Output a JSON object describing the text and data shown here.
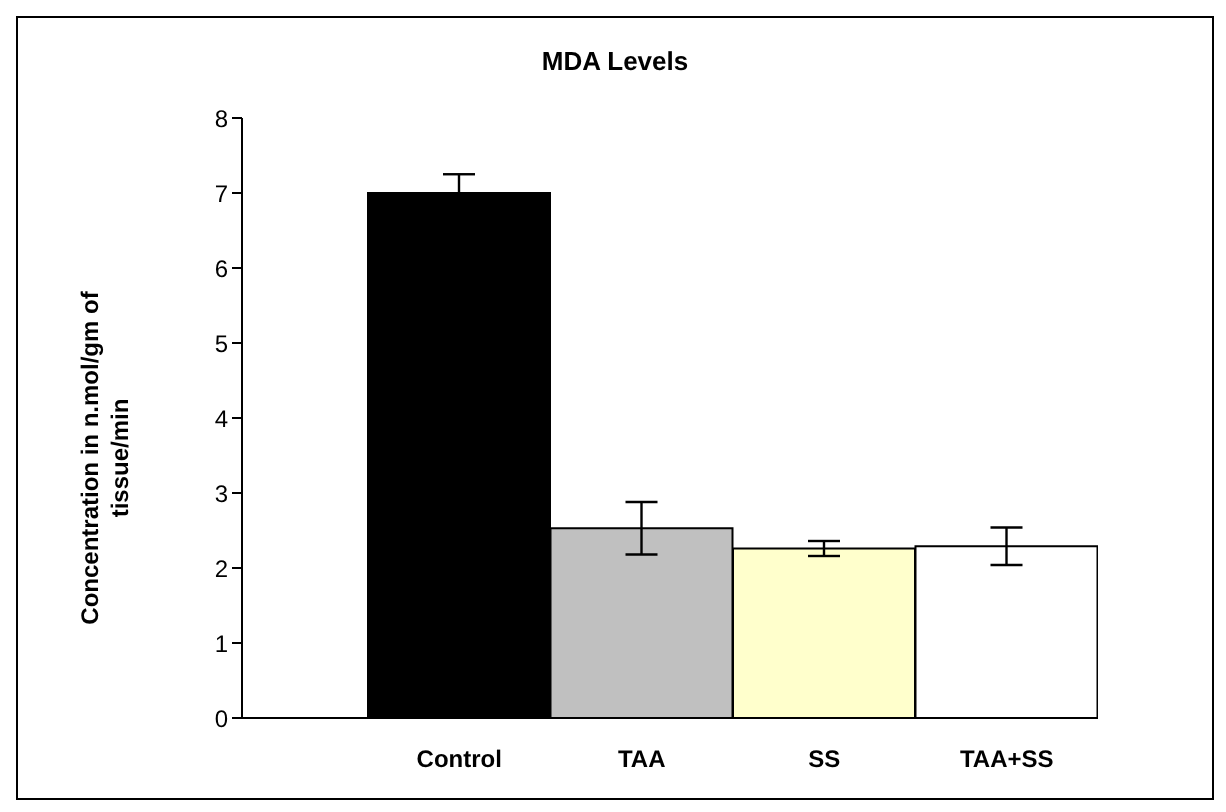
{
  "chart_data": {
    "type": "bar",
    "title": "MDA Levels",
    "ylabel": "Concentration in n.mol/gm of tissue/min",
    "categories": [
      "Control",
      "TAA",
      "SS",
      "TAA+SS"
    ],
    "values": [
      7.0,
      2.53,
      2.26,
      2.29
    ],
    "errors": [
      0.25,
      0.35,
      0.1,
      0.25
    ],
    "colors": [
      "#000000",
      "#c0c0c0",
      "#ffffcc",
      "#ffffff"
    ],
    "ylim": [
      0,
      8
    ],
    "yticks": [
      0,
      1,
      2,
      3,
      4,
      5,
      6,
      7,
      8
    ],
    "grid": false,
    "legend": false
  }
}
